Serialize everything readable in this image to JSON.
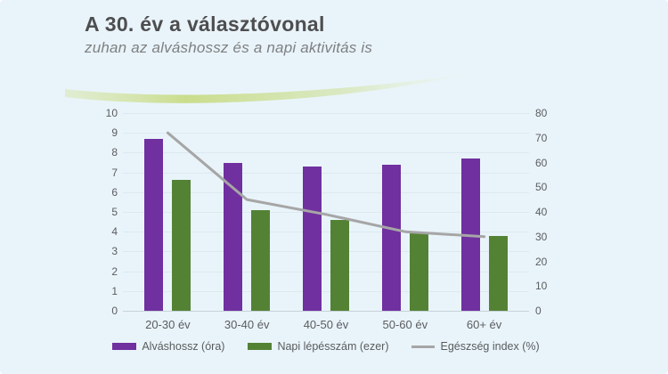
{
  "header": {
    "title": "A 30. év a választóvonal",
    "subtitle": "zuhan az alváshossz és a napi aktivitás is"
  },
  "colors": {
    "background": "#e9f4fa",
    "title_text": "#4e4e50",
    "subtitle_text": "#7e8082",
    "axis_text": "#5a5d60",
    "purple": "#7030a0",
    "green": "#548235",
    "line_gray": "#a6a6a6",
    "swoosh_green": "#c8dc86"
  },
  "chart_data": {
    "type": "bar",
    "subtype": "grouped bars with secondary-axis line overlay",
    "categories": [
      "20-30 év",
      "30-40 év",
      "40-50 év",
      "50-60 év",
      "60+ év"
    ],
    "series": [
      {
        "key": "sleep",
        "name": "Alváshossz (óra)",
        "kind": "bar",
        "axis": "left",
        "color_key": "purple",
        "values": [
          8.7,
          7.5,
          7.3,
          7.4,
          7.7
        ]
      },
      {
        "key": "steps",
        "name": "Napi lépésszám (ezer)",
        "kind": "bar",
        "axis": "left",
        "color_key": "green",
        "values": [
          6.6,
          5.1,
          4.6,
          3.9,
          3.8
        ]
      },
      {
        "key": "health",
        "name": "Egészség index (%)",
        "kind": "line",
        "axis": "right",
        "color_key": "line_gray",
        "values": [
          72,
          45,
          39,
          32,
          30
        ]
      }
    ],
    "left_axis": {
      "min": 0,
      "max": 10,
      "step": 1,
      "ticks": [
        "0",
        "1",
        "2",
        "3",
        "4",
        "5",
        "6",
        "7",
        "8",
        "9",
        "10"
      ]
    },
    "right_axis": {
      "min": 0,
      "max": 80,
      "step": 10,
      "ticks": [
        "0",
        "10",
        "20",
        "30",
        "40",
        "50",
        "60",
        "70",
        "80"
      ]
    },
    "grid": true,
    "legend_position": "bottom"
  }
}
